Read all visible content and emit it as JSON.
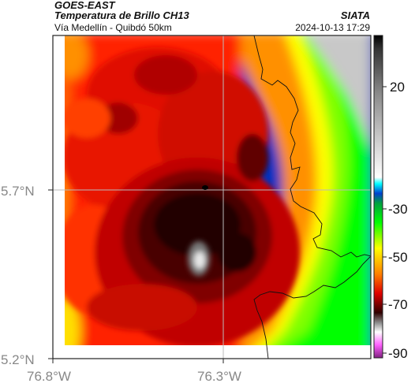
{
  "header": {
    "satellite": "GOES-EAST",
    "product": "Temperatura de Brillo CH13",
    "region": "Vía Medellín - Quibdó 50km",
    "agency": "SIATA",
    "timestamp": "2024-10-13 17:29"
  },
  "axes": {
    "lat_ticks": [
      "5.7°N",
      "5.2°N"
    ],
    "lon_ticks": [
      "76.8°W",
      "76.3°W"
    ]
  },
  "colorbar": {
    "ticks": [
      "20",
      "-30",
      "-50",
      "-70",
      "-90"
    ],
    "stops": [
      {
        "t": 25,
        "color": "#000000"
      },
      {
        "t": 20,
        "color": "#3a3a3a"
      },
      {
        "t": 10,
        "color": "#8a8a8a"
      },
      {
        "t": 0,
        "color": "#d8d8d8"
      },
      {
        "t": -18,
        "color": "#ffffff"
      },
      {
        "t": -22,
        "color": "#00ffff"
      },
      {
        "t": -26,
        "color": "#0040d0"
      },
      {
        "t": -30,
        "color": "#00a040"
      },
      {
        "t": -36,
        "color": "#00ff00"
      },
      {
        "t": -45,
        "color": "#ffff00"
      },
      {
        "t": -55,
        "color": "#ff8000"
      },
      {
        "t": -62,
        "color": "#e00000"
      },
      {
        "t": -72,
        "color": "#300000"
      },
      {
        "t": -76,
        "color": "#888888"
      },
      {
        "t": -80,
        "color": "#ffffff"
      },
      {
        "t": -85,
        "color": "#ff60ff"
      },
      {
        "t": -92,
        "color": "#802080"
      }
    ]
  }
}
